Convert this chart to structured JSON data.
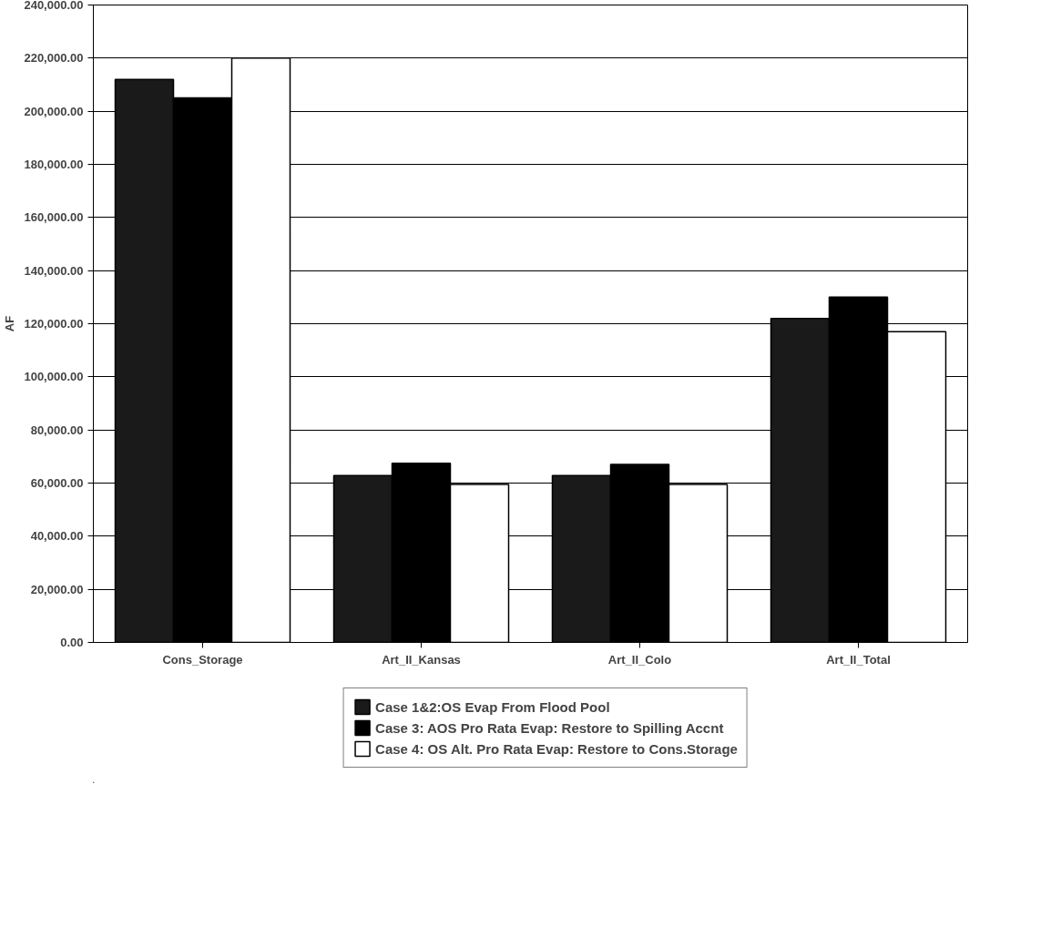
{
  "chart_data": {
    "type": "bar",
    "ylabel": "AF",
    "categories": [
      "Cons_Storage",
      "Art_II_Kansas",
      "Art_II_Colo",
      "Art_II_Total"
    ],
    "series": [
      {
        "name": "Case 1&2:OS Evap From Flood Pool",
        "color": "#1a1a1a",
        "values": [
          212000,
          62800,
          62800,
          122000
        ]
      },
      {
        "name": "Case 3: AOS Pro Rata Evap: Restore to Spilling Accnt",
        "color": "#000000",
        "values": [
          205000,
          67500,
          67000,
          130000
        ]
      },
      {
        "name": "Case 4: OS Alt. Pro Rata Evap: Restore to Cons.Storage",
        "color": "#ffffff",
        "values": [
          220000,
          59500,
          59500,
          117000
        ]
      }
    ],
    "ylim": [
      0,
      240000
    ],
    "yticks": [
      {
        "value": 0,
        "label": "0.00"
      },
      {
        "value": 20000,
        "label": "20,000.00"
      },
      {
        "value": 40000,
        "label": "40,000.00"
      },
      {
        "value": 60000,
        "label": "60,000.00"
      },
      {
        "value": 80000,
        "label": "80,000.00"
      },
      {
        "value": 100000,
        "label": "100,000.00"
      },
      {
        "value": 120000,
        "label": "120,000.00"
      },
      {
        "value": 140000,
        "label": "140,000.00"
      },
      {
        "value": 160000,
        "label": "160,000.00"
      },
      {
        "value": 180000,
        "label": "180,000.00"
      },
      {
        "value": 200000,
        "label": "200,000.00"
      },
      {
        "value": 220000,
        "label": "220,000.00"
      },
      {
        "value": 240000,
        "label": "240,000.00"
      }
    ],
    "grid": "y",
    "legend": "bottom"
  }
}
